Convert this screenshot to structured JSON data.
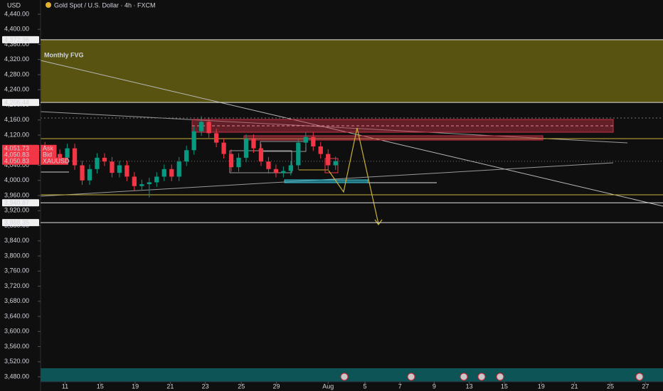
{
  "chart_data": {
    "type": "candlestick",
    "title": "Gold Spot / U.S. Dollar · 4h · FXCM",
    "currency": "USD",
    "annotation": "Monthly FVG",
    "up_color": "#089981",
    "down_color": "#f23645",
    "xlim": [
      0,
      71
    ],
    "ylim": [
      3467,
      4455
    ],
    "x": [
      0.5,
      1.35,
      2.2,
      3.05,
      3.9,
      4.75,
      5.6,
      6.45,
      7.3,
      8.15,
      9,
      9.85,
      10.7,
      11.55,
      12.4,
      13.25,
      14.1,
      14.95,
      15.8,
      16.65,
      17.5,
      18.35,
      19.2,
      20.05,
      20.9,
      21.75,
      22.6,
      23.45,
      24.3,
      25.15,
      26,
      26.85,
      27.7,
      28.55,
      29.4,
      30.25,
      31.1,
      31.95,
      32.8,
      33.65
    ],
    "open": [
      4090,
      4080,
      4070,
      4060,
      4085,
      4040,
      4000,
      4030,
      4060,
      4050,
      4020,
      4040,
      4010,
      3985,
      3990,
      3995,
      4010,
      4030,
      4010,
      4050,
      4080,
      4130,
      4155,
      4125,
      4100,
      4070,
      4035,
      4060,
      4110,
      4085,
      4050,
      4030,
      4020,
      4025,
      4040,
      4100,
      4115,
      4090,
      4070,
      4040
    ],
    "high": [
      4102,
      4092,
      4082,
      4097,
      4097,
      4052,
      4042,
      4072,
      4072,
      4062,
      4052,
      4052,
      4022,
      4002,
      4007,
      4022,
      4042,
      4042,
      4062,
      4092,
      4142,
      4170,
      4167,
      4137,
      4112,
      4082,
      4072,
      4122,
      4122,
      4097,
      4062,
      4042,
      4037,
      4052,
      4112,
      4127,
      4127,
      4102,
      4082,
      4063
    ],
    "low": [
      4068,
      4058,
      4048,
      4048,
      4028,
      3988,
      3988,
      4018,
      4038,
      4008,
      4008,
      3998,
      3973,
      3973,
      3955,
      3983,
      3998,
      3998,
      3998,
      4038,
      4068,
      4118,
      4113,
      4088,
      4058,
      4023,
      4023,
      4048,
      4073,
      4038,
      4018,
      4008,
      4008,
      4013,
      4028,
      4088,
      4078,
      4058,
      4028,
      4028
    ],
    "close": [
      4080,
      4070,
      4060,
      4085,
      4040,
      4000,
      4030,
      4060,
      4050,
      4020,
      4040,
      4010,
      3985,
      3990,
      3995,
      4010,
      4030,
      4010,
      4050,
      4080,
      4130,
      4155,
      4125,
      4100,
      4070,
      4035,
      4060,
      4110,
      4085,
      4050,
      4030,
      4020,
      4025,
      4040,
      4100,
      4115,
      4090,
      4070,
      4040,
      4051
    ],
    "yticks": [
      {
        "value": 4440,
        "label": "4,440.00"
      },
      {
        "value": 4400,
        "label": "4,400.00"
      },
      {
        "value": 4360,
        "label": "4,360.00"
      },
      {
        "value": 4320,
        "label": "4,320.00"
      },
      {
        "value": 4280,
        "label": "4,280.00"
      },
      {
        "value": 4240,
        "label": "4,240.00"
      },
      {
        "value": 4200,
        "label": "4,200.00"
      },
      {
        "value": 4160,
        "label": "4,160.00"
      },
      {
        "value": 4120,
        "label": "4,120.00"
      },
      {
        "value": 4080,
        "label": "4,080.00"
      },
      {
        "value": 4040,
        "label": "4,040.00"
      },
      {
        "value": 4000,
        "label": "4,000.00"
      },
      {
        "value": 3960,
        "label": "3,960.00"
      },
      {
        "value": 3920,
        "label": "3,920.00"
      },
      {
        "value": 3880,
        "label": "3,880.00"
      },
      {
        "value": 3840,
        "label": "3,840.00"
      },
      {
        "value": 3800,
        "label": "3,800.00"
      },
      {
        "value": 3760,
        "label": "3,760.00"
      },
      {
        "value": 3720,
        "label": "3,720.00"
      },
      {
        "value": 3680,
        "label": "3,680.00"
      },
      {
        "value": 3640,
        "label": "3,640.00"
      },
      {
        "value": 3600,
        "label": "3,600.00"
      },
      {
        "value": 3560,
        "label": "3,560.00"
      },
      {
        "value": 3520,
        "label": "3,520.00"
      },
      {
        "value": 3480,
        "label": "3,480.00"
      }
    ],
    "xticks": [
      {
        "value": 2.8,
        "label": "11"
      },
      {
        "value": 6.8,
        "label": "15"
      },
      {
        "value": 10.8,
        "label": "19"
      },
      {
        "value": 14.8,
        "label": "21"
      },
      {
        "value": 18.8,
        "label": "23"
      },
      {
        "value": 22.9,
        "label": "25"
      },
      {
        "value": 26.9,
        "label": "29"
      },
      {
        "value": 32.8,
        "label": "Aug"
      },
      {
        "value": 37.0,
        "label": "5"
      },
      {
        "value": 41.0,
        "label": "7"
      },
      {
        "value": 44.9,
        "label": "9"
      },
      {
        "value": 48.9,
        "label": "13"
      },
      {
        "value": 52.9,
        "label": "15"
      },
      {
        "value": 57.1,
        "label": "19"
      },
      {
        "value": 60.9,
        "label": "21"
      },
      {
        "value": 65.0,
        "label": "25"
      },
      {
        "value": 69.0,
        "label": "27"
      }
    ],
    "levels": [
      {
        "value": 4372.36,
        "label": "4,372.36"
      },
      {
        "value": 4206.44,
        "label": "4,206.44"
      },
      {
        "value": 4051.73,
        "label": "4,051.73",
        "tag": "Ask",
        "color": "#f23645"
      },
      {
        "value": 4050.83,
        "label": "4,050.83",
        "tag": "Bid",
        "color": "#f23645"
      },
      {
        "value": 4050.83,
        "label": "4,050.83",
        "tag": "XAUUSD",
        "color": "#f23645"
      },
      {
        "value": 3940.87,
        "label": "3,940.87"
      },
      {
        "value": 3888.35,
        "label": "3,888.35"
      }
    ]
  }
}
